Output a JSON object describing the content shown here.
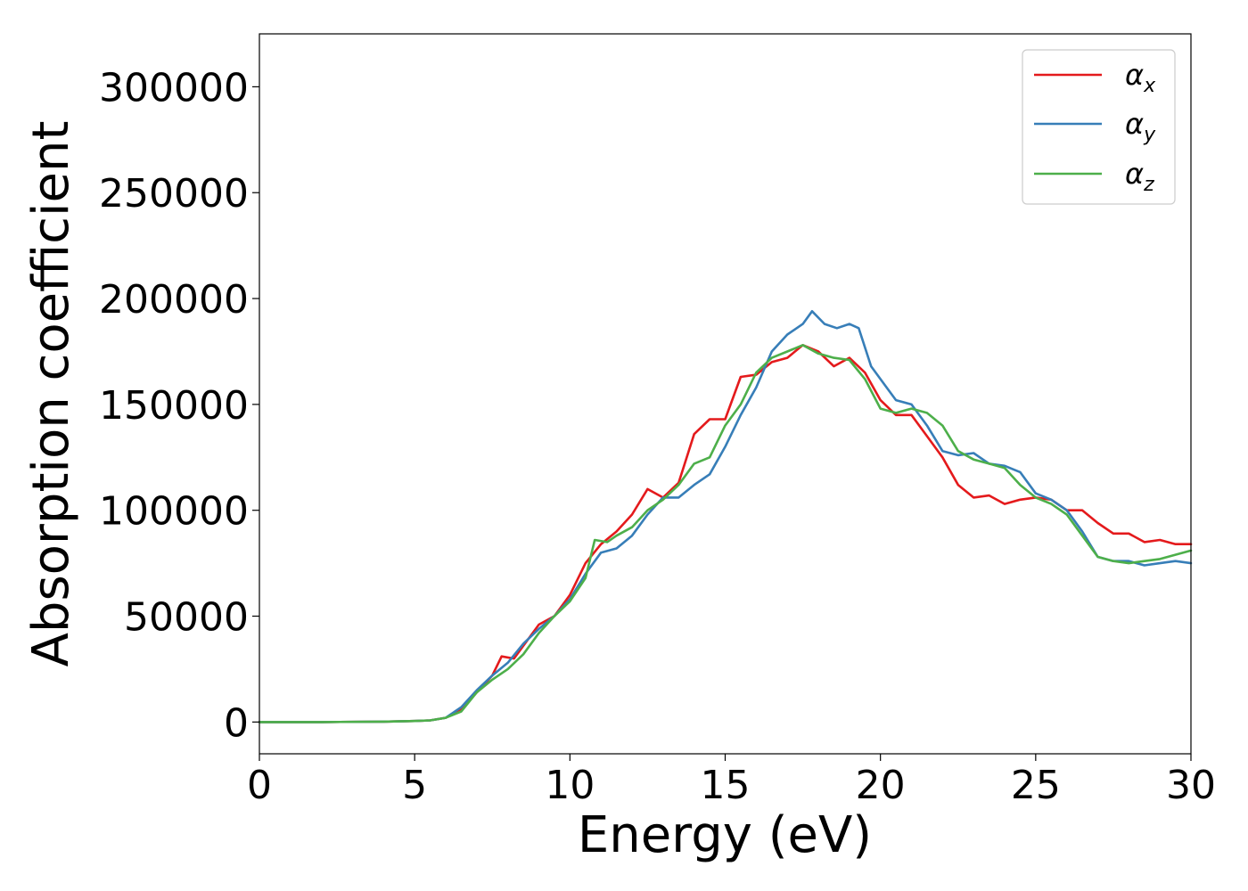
{
  "chart_data": {
    "type": "line",
    "title": "",
    "xlabel": "Energy (eV)",
    "ylabel": "Absorption coefficient",
    "xlim": [
      0,
      30
    ],
    "ylim": [
      -15000,
      325000
    ],
    "xticks": [
      0,
      5,
      10,
      15,
      20,
      25,
      30
    ],
    "yticks": [
      0,
      50000,
      100000,
      150000,
      200000,
      250000,
      300000
    ],
    "grid": false,
    "legend_position": "top-right",
    "series": [
      {
        "name": "αx",
        "symbol": "α",
        "subscript": "x",
        "color": "#e41a1c",
        "points": [
          [
            0,
            0
          ],
          [
            2,
            0
          ],
          [
            4,
            200
          ],
          [
            5,
            500
          ],
          [
            5.5,
            800
          ],
          [
            6,
            2000
          ],
          [
            6.5,
            6000
          ],
          [
            7,
            14000
          ],
          [
            7.5,
            22000
          ],
          [
            7.8,
            31000
          ],
          [
            8.2,
            30000
          ],
          [
            8.6,
            38000
          ],
          [
            9,
            46000
          ],
          [
            9.5,
            50000
          ],
          [
            10,
            60000
          ],
          [
            10.5,
            75000
          ],
          [
            11,
            84000
          ],
          [
            11.5,
            90000
          ],
          [
            12,
            98000
          ],
          [
            12.5,
            110000
          ],
          [
            13,
            106000
          ],
          [
            13.5,
            113000
          ],
          [
            14,
            136000
          ],
          [
            14.5,
            143000
          ],
          [
            15,
            143000
          ],
          [
            15.5,
            163000
          ],
          [
            16,
            164000
          ],
          [
            16.5,
            170000
          ],
          [
            17,
            172000
          ],
          [
            17.5,
            178000
          ],
          [
            18,
            175000
          ],
          [
            18.5,
            168000
          ],
          [
            19,
            172000
          ],
          [
            19.5,
            165000
          ],
          [
            20,
            152000
          ],
          [
            20.5,
            145000
          ],
          [
            21,
            145000
          ],
          [
            21.5,
            135000
          ],
          [
            22,
            125000
          ],
          [
            22.5,
            112000
          ],
          [
            23,
            106000
          ],
          [
            23.5,
            107000
          ],
          [
            24,
            103000
          ],
          [
            24.5,
            105000
          ],
          [
            25,
            106000
          ],
          [
            25.5,
            105000
          ],
          [
            26,
            100000
          ],
          [
            26.5,
            100000
          ],
          [
            27,
            94000
          ],
          [
            27.5,
            89000
          ],
          [
            28,
            89000
          ],
          [
            28.5,
            85000
          ],
          [
            29,
            86000
          ],
          [
            29.5,
            84000
          ],
          [
            30,
            84000
          ]
        ]
      },
      {
        "name": "αy",
        "symbol": "α",
        "subscript": "y",
        "color": "#377eb8",
        "points": [
          [
            0,
            0
          ],
          [
            2,
            0
          ],
          [
            4,
            200
          ],
          [
            5,
            500
          ],
          [
            5.5,
            800
          ],
          [
            6,
            2000
          ],
          [
            6.5,
            7000
          ],
          [
            7,
            15000
          ],
          [
            7.5,
            22000
          ],
          [
            8,
            28000
          ],
          [
            8.5,
            37000
          ],
          [
            9,
            44000
          ],
          [
            9.5,
            50000
          ],
          [
            10,
            58000
          ],
          [
            10.5,
            70000
          ],
          [
            11,
            80000
          ],
          [
            11.5,
            82000
          ],
          [
            12,
            88000
          ],
          [
            12.5,
            98000
          ],
          [
            13,
            106000
          ],
          [
            13.5,
            106000
          ],
          [
            14,
            112000
          ],
          [
            14.5,
            117000
          ],
          [
            15,
            130000
          ],
          [
            15.5,
            145000
          ],
          [
            16,
            158000
          ],
          [
            16.5,
            175000
          ],
          [
            17,
            183000
          ],
          [
            17.5,
            188000
          ],
          [
            17.8,
            194000
          ],
          [
            18.2,
            188000
          ],
          [
            18.6,
            186000
          ],
          [
            19,
            188000
          ],
          [
            19.3,
            186000
          ],
          [
            19.7,
            168000
          ],
          [
            20.2,
            158000
          ],
          [
            20.5,
            152000
          ],
          [
            21,
            150000
          ],
          [
            21.5,
            140000
          ],
          [
            22,
            128000
          ],
          [
            22.5,
            126000
          ],
          [
            23,
            127000
          ],
          [
            23.5,
            122000
          ],
          [
            24,
            121000
          ],
          [
            24.5,
            118000
          ],
          [
            25,
            108000
          ],
          [
            25.5,
            105000
          ],
          [
            26,
            100000
          ],
          [
            26.5,
            90000
          ],
          [
            27,
            78000
          ],
          [
            27.5,
            76000
          ],
          [
            28,
            76000
          ],
          [
            28.5,
            74000
          ],
          [
            29,
            75000
          ],
          [
            29.5,
            76000
          ],
          [
            30,
            75000
          ]
        ]
      },
      {
        "name": "αz",
        "symbol": "α",
        "subscript": "z",
        "color": "#4daf4a",
        "points": [
          [
            0,
            0
          ],
          [
            2,
            0
          ],
          [
            4,
            200
          ],
          [
            5,
            500
          ],
          [
            5.5,
            800
          ],
          [
            6,
            2000
          ],
          [
            6.5,
            5000
          ],
          [
            7,
            14000
          ],
          [
            7.5,
            20000
          ],
          [
            8,
            25000
          ],
          [
            8.5,
            32000
          ],
          [
            9,
            42000
          ],
          [
            9.5,
            50000
          ],
          [
            10,
            57000
          ],
          [
            10.5,
            68000
          ],
          [
            10.8,
            86000
          ],
          [
            11.2,
            85000
          ],
          [
            11.5,
            88000
          ],
          [
            12,
            92000
          ],
          [
            12.5,
            100000
          ],
          [
            13,
            105000
          ],
          [
            13.5,
            112000
          ],
          [
            14,
            122000
          ],
          [
            14.5,
            125000
          ],
          [
            15,
            140000
          ],
          [
            15.5,
            150000
          ],
          [
            16,
            165000
          ],
          [
            16.5,
            172000
          ],
          [
            17,
            175000
          ],
          [
            17.5,
            178000
          ],
          [
            18,
            174000
          ],
          [
            18.5,
            172000
          ],
          [
            19,
            171000
          ],
          [
            19.5,
            162000
          ],
          [
            20,
            148000
          ],
          [
            20.5,
            146000
          ],
          [
            21,
            148000
          ],
          [
            21.5,
            146000
          ],
          [
            22,
            140000
          ],
          [
            22.5,
            128000
          ],
          [
            23,
            124000
          ],
          [
            23.5,
            122000
          ],
          [
            24,
            120000
          ],
          [
            24.5,
            112000
          ],
          [
            25,
            106000
          ],
          [
            25.5,
            103000
          ],
          [
            26,
            98000
          ],
          [
            26.5,
            88000
          ],
          [
            27,
            78000
          ],
          [
            27.5,
            76000
          ],
          [
            28,
            75000
          ],
          [
            28.5,
            76000
          ],
          [
            29,
            77000
          ],
          [
            29.5,
            79000
          ],
          [
            30,
            81000
          ]
        ]
      }
    ]
  }
}
